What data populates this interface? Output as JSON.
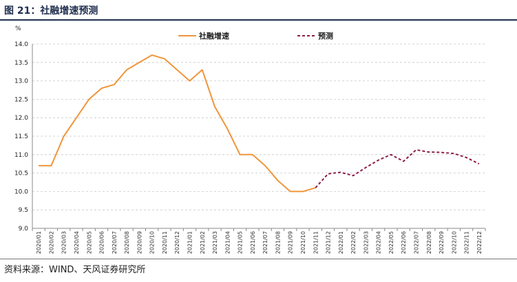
{
  "figure": {
    "title": "图 21：社融增速预测",
    "source": "资料来源：WIND、天风证券研究所"
  },
  "colors": {
    "actual": "#f0953a",
    "forecast": "#8c1c48",
    "title": "#1f2f4f",
    "grid": "#c8c8c8",
    "axis": "#888888"
  },
  "chart_data": {
    "type": "line",
    "unit": "%",
    "ylim": [
      9.0,
      14.0
    ],
    "y_ticks": [
      "9.0",
      "9.5",
      "10.0",
      "10.5",
      "11.0",
      "11.5",
      "12.0",
      "12.5",
      "13.0",
      "13.5",
      "14.0"
    ],
    "grid": "horizontal dashed",
    "legend_position": "top",
    "categories": [
      "2020/01",
      "2020/02",
      "2020/03",
      "2020/04",
      "2020/05",
      "2020/06",
      "2020/07",
      "2020/08",
      "2020/09",
      "2020/10",
      "2020/11",
      "2020/12",
      "2021/01",
      "2021/02",
      "2021/03",
      "2021/04",
      "2021/05",
      "2021/06",
      "2021/07",
      "2021/08",
      "2021/09",
      "2021/10",
      "2021/11",
      "2021/12",
      "2022/01",
      "2022/02",
      "2022/03",
      "2022/04",
      "2022/05",
      "2022/06",
      "2022/07",
      "2022/08",
      "2022/09",
      "2022/10",
      "2022/11",
      "2022/12"
    ],
    "series": [
      {
        "name": "社融增速",
        "style": "solid",
        "x": [
          "2020/01",
          "2020/02",
          "2020/03",
          "2020/04",
          "2020/05",
          "2020/06",
          "2020/07",
          "2020/08",
          "2020/09",
          "2020/10",
          "2020/11",
          "2020/12",
          "2021/01",
          "2021/02",
          "2021/03",
          "2021/04",
          "2021/05",
          "2021/06",
          "2021/07",
          "2021/08",
          "2021/09",
          "2021/10",
          "2021/11"
        ],
        "values": [
          10.7,
          10.7,
          11.5,
          12.0,
          12.5,
          12.8,
          12.9,
          13.3,
          13.5,
          13.7,
          13.6,
          13.3,
          13.0,
          13.3,
          12.3,
          11.7,
          11.0,
          11.0,
          10.7,
          10.3,
          10.0,
          10.0,
          10.1
        ]
      },
      {
        "name": "预测",
        "style": "dashed",
        "x": [
          "2021/11",
          "2021/12",
          "2022/01",
          "2022/02",
          "2022/03",
          "2022/04",
          "2022/05",
          "2022/06",
          "2022/07",
          "2022/08",
          "2022/09",
          "2022/10",
          "2022/11",
          "2022/12"
        ],
        "values": [
          10.1,
          10.48,
          10.52,
          10.43,
          10.65,
          10.85,
          11.0,
          10.82,
          11.13,
          11.07,
          11.06,
          11.03,
          10.92,
          10.75
        ]
      }
    ]
  }
}
